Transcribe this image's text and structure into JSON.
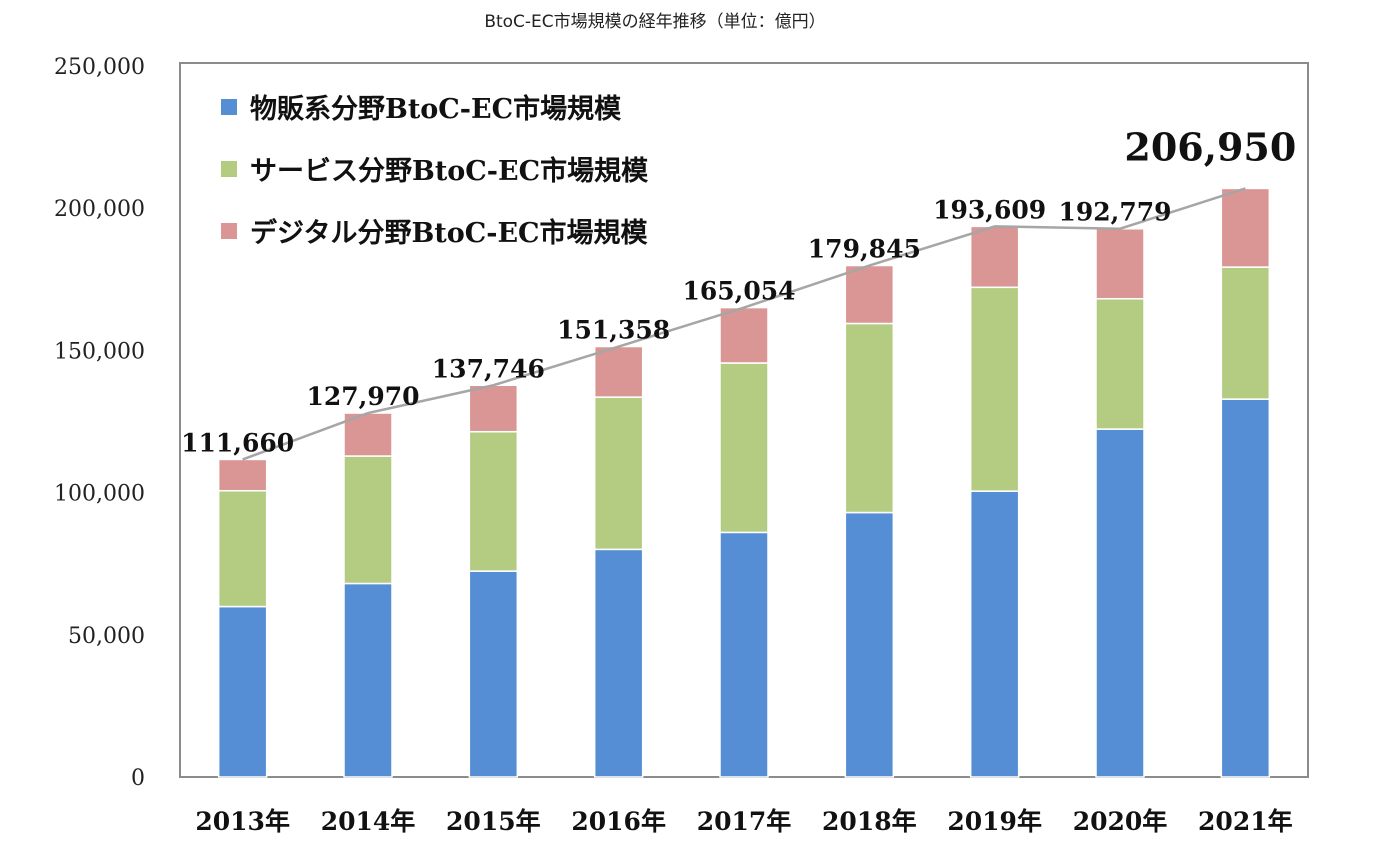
{
  "chart_data": {
    "type": "bar",
    "stacked": true,
    "title": "BtoC-EC市場規模の経年推移（単位：億円）",
    "xlabel": "",
    "ylabel": "",
    "ylim": [
      0,
      250000
    ],
    "yticks": [
      0,
      50000,
      100000,
      150000,
      200000,
      250000
    ],
    "ytick_labels": [
      "0",
      "50,000",
      "100,000",
      "150,000",
      "200,000",
      "250,000"
    ],
    "categories": [
      "2013年",
      "2014年",
      "2015年",
      "2016年",
      "2017年",
      "2018年",
      "2019年",
      "2020年",
      "2021年"
    ],
    "series": [
      {
        "name": "物販系分野BtoC-EC市場規模",
        "color": "#558ed5",
        "values": [
          59931,
          68043,
          72398,
          80043,
          86008,
          92992,
          100515,
          122333,
          132865
        ]
      },
      {
        "name": "サービス分野BtoC-EC市場規模",
        "color": "#b3cc82",
        "values": [
          40715,
          44816,
          49014,
          53532,
          59568,
          66471,
          71672,
          45832,
          46424
        ]
      },
      {
        "name": "デジタル分野BtoC-EC市場規模",
        "color": "#d99694",
        "values": [
          11014,
          15111,
          16334,
          17783,
          19478,
          20382,
          21422,
          24614,
          27661
        ]
      }
    ],
    "totals": [
      111660,
      127970,
      137746,
      151358,
      165054,
      179845,
      193609,
      192779,
      206950
    ],
    "total_labels": [
      "111,660",
      "127,970",
      "137,746",
      "151,358",
      "165,054",
      "179,845",
      "193,609",
      "192,779",
      "206,950"
    ],
    "total_line_color": "#a6a6a6",
    "grid": false,
    "legend_placement": "top-left"
  }
}
